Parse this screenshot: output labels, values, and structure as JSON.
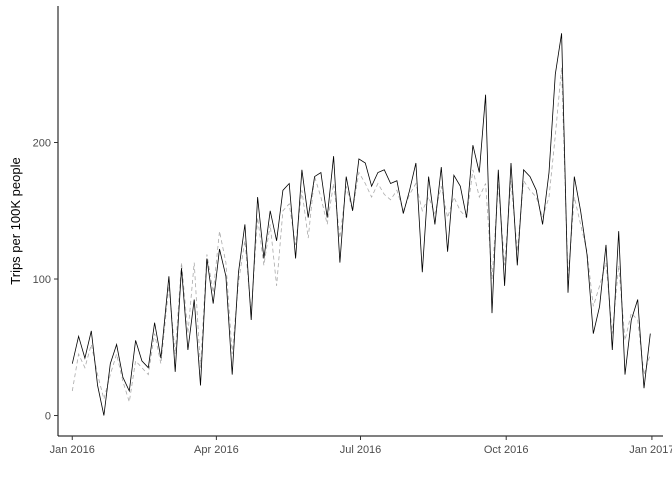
{
  "chart_data": {
    "type": "line",
    "title": "",
    "xlabel": "",
    "ylabel": "Trips per 100K people",
    "x_range": [
      "2015-12-23",
      "2017-01-08"
    ],
    "ylim": [
      -15,
      300
    ],
    "grid": false,
    "legend": "none",
    "x_ticks": [
      {
        "date": "2016-01-01",
        "label": "Jan 2016"
      },
      {
        "date": "2016-04-01",
        "label": "Apr 2016"
      },
      {
        "date": "2016-07-01",
        "label": "Jul 2016"
      },
      {
        "date": "2016-10-01",
        "label": "Oct 2016"
      },
      {
        "date": "2017-01-01",
        "label": "Jan 2017"
      }
    ],
    "y_ticks": [
      {
        "value": 0,
        "label": "0"
      },
      {
        "value": 100,
        "label": "100"
      },
      {
        "value": 200,
        "label": "200"
      }
    ],
    "series": [
      {
        "color": "#000000",
        "dash": "solid",
        "x": [
          "2016-01-01",
          "2016-01-05",
          "2016-01-09",
          "2016-01-13",
          "2016-01-17",
          "2016-01-21",
          "2016-01-25",
          "2016-01-29",
          "2016-02-02",
          "2016-02-06",
          "2016-02-10",
          "2016-02-14",
          "2016-02-18",
          "2016-02-22",
          "2016-02-26",
          "2016-03-02",
          "2016-03-06",
          "2016-03-10",
          "2016-03-14",
          "2016-03-18",
          "2016-03-22",
          "2016-03-26",
          "2016-03-30",
          "2016-04-03",
          "2016-04-07",
          "2016-04-11",
          "2016-04-15",
          "2016-04-19",
          "2016-04-23",
          "2016-04-27",
          "2016-05-01",
          "2016-05-05",
          "2016-05-09",
          "2016-05-13",
          "2016-05-17",
          "2016-05-21",
          "2016-05-25",
          "2016-05-29",
          "2016-06-02",
          "2016-06-06",
          "2016-06-10",
          "2016-06-14",
          "2016-06-18",
          "2016-06-22",
          "2016-06-26",
          "2016-06-30",
          "2016-07-04",
          "2016-07-08",
          "2016-07-12",
          "2016-07-16",
          "2016-07-20",
          "2016-07-24",
          "2016-07-28",
          "2016-08-01",
          "2016-08-05",
          "2016-08-09",
          "2016-08-13",
          "2016-08-17",
          "2016-08-21",
          "2016-08-25",
          "2016-08-29",
          "2016-09-02",
          "2016-09-06",
          "2016-09-10",
          "2016-09-14",
          "2016-09-18",
          "2016-09-22",
          "2016-09-26",
          "2016-09-30",
          "2016-10-04",
          "2016-10-08",
          "2016-10-12",
          "2016-10-16",
          "2016-10-20",
          "2016-10-24",
          "2016-10-28",
          "2016-11-01",
          "2016-11-05",
          "2016-11-09",
          "2016-11-13",
          "2016-11-17",
          "2016-11-21",
          "2016-11-25",
          "2016-11-29",
          "2016-12-03",
          "2016-12-07",
          "2016-12-11",
          "2016-12-15",
          "2016-12-19",
          "2016-12-23",
          "2016-12-27",
          "2016-12-31"
        ],
        "y": [
          38,
          58,
          42,
          62,
          22,
          0,
          38,
          52,
          28,
          18,
          55,
          40,
          35,
          68,
          42,
          102,
          32,
          108,
          48,
          85,
          22,
          115,
          82,
          122,
          102,
          30,
          105,
          140,
          70,
          160,
          115,
          150,
          128,
          165,
          170,
          115,
          180,
          145,
          175,
          178,
          145,
          190,
          112,
          175,
          150,
          188,
          185,
          168,
          178,
          180,
          170,
          172,
          148,
          165,
          185,
          105,
          175,
          140,
          182,
          120,
          176,
          168,
          145,
          198,
          178,
          235,
          75,
          180,
          95,
          185,
          110,
          180,
          175,
          165,
          140,
          178,
          250,
          280,
          90,
          175,
          150,
          118,
          60,
          80,
          125,
          48,
          135,
          30,
          70,
          85,
          20,
          60
        ]
      },
      {
        "color": "#aaaaaa",
        "dash": "dashed",
        "x": [
          "2016-01-01",
          "2016-01-05",
          "2016-01-09",
          "2016-01-13",
          "2016-01-17",
          "2016-01-21",
          "2016-01-25",
          "2016-01-29",
          "2016-02-02",
          "2016-02-06",
          "2016-02-10",
          "2016-02-14",
          "2016-02-18",
          "2016-02-22",
          "2016-02-26",
          "2016-03-02",
          "2016-03-06",
          "2016-03-10",
          "2016-03-14",
          "2016-03-18",
          "2016-03-22",
          "2016-03-26",
          "2016-03-30",
          "2016-04-03",
          "2016-04-07",
          "2016-04-11",
          "2016-04-15",
          "2016-04-19",
          "2016-04-23",
          "2016-04-27",
          "2016-05-01",
          "2016-05-05",
          "2016-05-09",
          "2016-05-13",
          "2016-05-17",
          "2016-05-21",
          "2016-05-25",
          "2016-05-29",
          "2016-06-02",
          "2016-06-06",
          "2016-06-10",
          "2016-06-14",
          "2016-06-18",
          "2016-06-22",
          "2016-06-26",
          "2016-06-30",
          "2016-07-04",
          "2016-07-08",
          "2016-07-12",
          "2016-07-16",
          "2016-07-20",
          "2016-07-24",
          "2016-07-28",
          "2016-08-01",
          "2016-08-05",
          "2016-08-09",
          "2016-08-13",
          "2016-08-17",
          "2016-08-21",
          "2016-08-25",
          "2016-08-29",
          "2016-09-02",
          "2016-09-06",
          "2016-09-10",
          "2016-09-14",
          "2016-09-18",
          "2016-09-22",
          "2016-09-26",
          "2016-09-30",
          "2016-10-04",
          "2016-10-08",
          "2016-10-12",
          "2016-10-16",
          "2016-10-20",
          "2016-10-24",
          "2016-10-28",
          "2016-11-01",
          "2016-11-05",
          "2016-11-09",
          "2016-11-13",
          "2016-11-17",
          "2016-11-21",
          "2016-11-25",
          "2016-11-29",
          "2016-12-03",
          "2016-12-07",
          "2016-12-11",
          "2016-12-15",
          "2016-12-19",
          "2016-12-23",
          "2016-12-27",
          "2016-12-31"
        ],
        "y": [
          18,
          45,
          35,
          52,
          30,
          12,
          30,
          45,
          25,
          10,
          40,
          35,
          30,
          60,
          38,
          95,
          45,
          112,
          60,
          112,
          35,
          118,
          90,
          135,
          112,
          45,
          98,
          128,
          75,
          145,
          110,
          140,
          95,
          150,
          155,
          125,
          165,
          130,
          175,
          160,
          140,
          170,
          130,
          168,
          150,
          178,
          170,
          160,
          170,
          162,
          158,
          165,
          150,
          162,
          170,
          150,
          160,
          148,
          168,
          145,
          160,
          150,
          145,
          180,
          160,
          170,
          100,
          170,
          110,
          172,
          120,
          172,
          165,
          160,
          145,
          160,
          205,
          255,
          100,
          160,
          140,
          120,
          80,
          95,
          112,
          60,
          110,
          55,
          75,
          70,
          30,
          45
        ]
      }
    ]
  }
}
